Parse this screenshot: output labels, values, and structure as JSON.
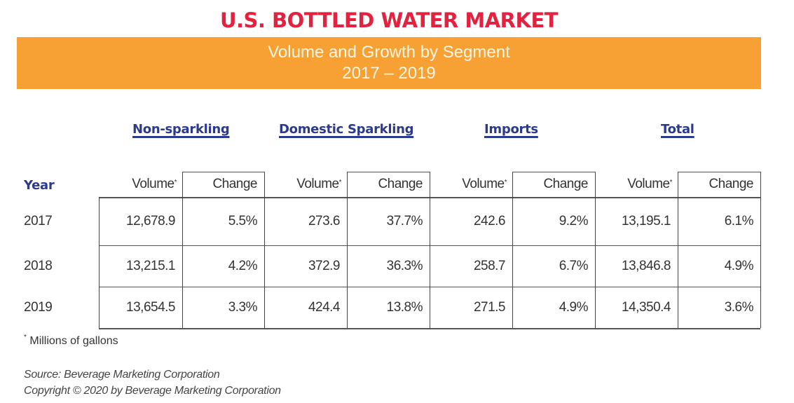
{
  "header": {
    "title": "U.S. BOTTLED WATER MARKET",
    "subtitle": "Volume and Growth by Segment",
    "period": "2017 – 2019"
  },
  "colors": {
    "title": "#e2223f",
    "banner": "#f7a034",
    "segment_headers": "#2b3a8c"
  },
  "table": {
    "year_label": "Year",
    "segments": [
      "Non-sparkling",
      "Domestic Sparkling",
      "Imports",
      "Total"
    ],
    "sub_headers": {
      "volume": "Volume",
      "change": "Change",
      "asterisk": "*"
    },
    "rows": [
      {
        "year": "2017",
        "values": [
          "12,678.9",
          "5.5%",
          "273.6",
          "37.7%",
          "242.6",
          "9.2%",
          "13,195.1",
          "6.1%"
        ]
      },
      {
        "year": "2018",
        "values": [
          "13,215.1",
          "4.2%",
          "372.9",
          "36.3%",
          "258.7",
          "6.7%",
          "13,846.8",
          "4.9%"
        ]
      },
      {
        "year": "2019",
        "values": [
          "13,654.5",
          "3.3%",
          "424.4",
          "13.8%",
          "271.5",
          "4.9%",
          "14,350.4",
          "3.6%"
        ]
      }
    ]
  },
  "footnote": {
    "asterisk": "*",
    "text": "Millions of gallons"
  },
  "source": {
    "line1": "Source: Beverage Marketing Corporation",
    "line2": "Copyright © 2020 by Beverage Marketing Corporation"
  },
  "chart_data": {
    "type": "table",
    "title": "U.S. BOTTLED WATER MARKET",
    "subtitle": "Volume and Growth by Segment 2017 – 2019",
    "units": "Volume in millions of gallons; Change in percent",
    "columns": [
      "Year",
      "Non-sparkling Volume",
      "Non-sparkling Change",
      "Domestic Sparkling Volume",
      "Domestic Sparkling Change",
      "Imports Volume",
      "Imports Change",
      "Total Volume",
      "Total Change"
    ],
    "rows": [
      [
        2017,
        12678.9,
        5.5,
        273.6,
        37.7,
        242.6,
        9.2,
        13195.1,
        6.1
      ],
      [
        2018,
        13215.1,
        4.2,
        372.9,
        36.3,
        258.7,
        6.7,
        13846.8,
        4.9
      ],
      [
        2019,
        13654.5,
        3.3,
        424.4,
        13.8,
        271.5,
        4.9,
        14350.4,
        3.6
      ]
    ],
    "series": [
      {
        "name": "Non-sparkling",
        "volume": [
          12678.9,
          13215.1,
          13654.5
        ],
        "change": [
          5.5,
          4.2,
          3.3
        ]
      },
      {
        "name": "Domestic Sparkling",
        "volume": [
          273.6,
          372.9,
          424.4
        ],
        "change": [
          37.7,
          36.3,
          13.8
        ]
      },
      {
        "name": "Imports",
        "volume": [
          242.6,
          258.7,
          271.5
        ],
        "change": [
          9.2,
          6.7,
          4.9
        ]
      },
      {
        "name": "Total",
        "volume": [
          13195.1,
          13846.8,
          14350.4
        ],
        "change": [
          6.1,
          4.9,
          3.6
        ]
      }
    ],
    "categories": [
      "2017",
      "2018",
      "2019"
    ],
    "source": "Beverage Marketing Corporation"
  }
}
